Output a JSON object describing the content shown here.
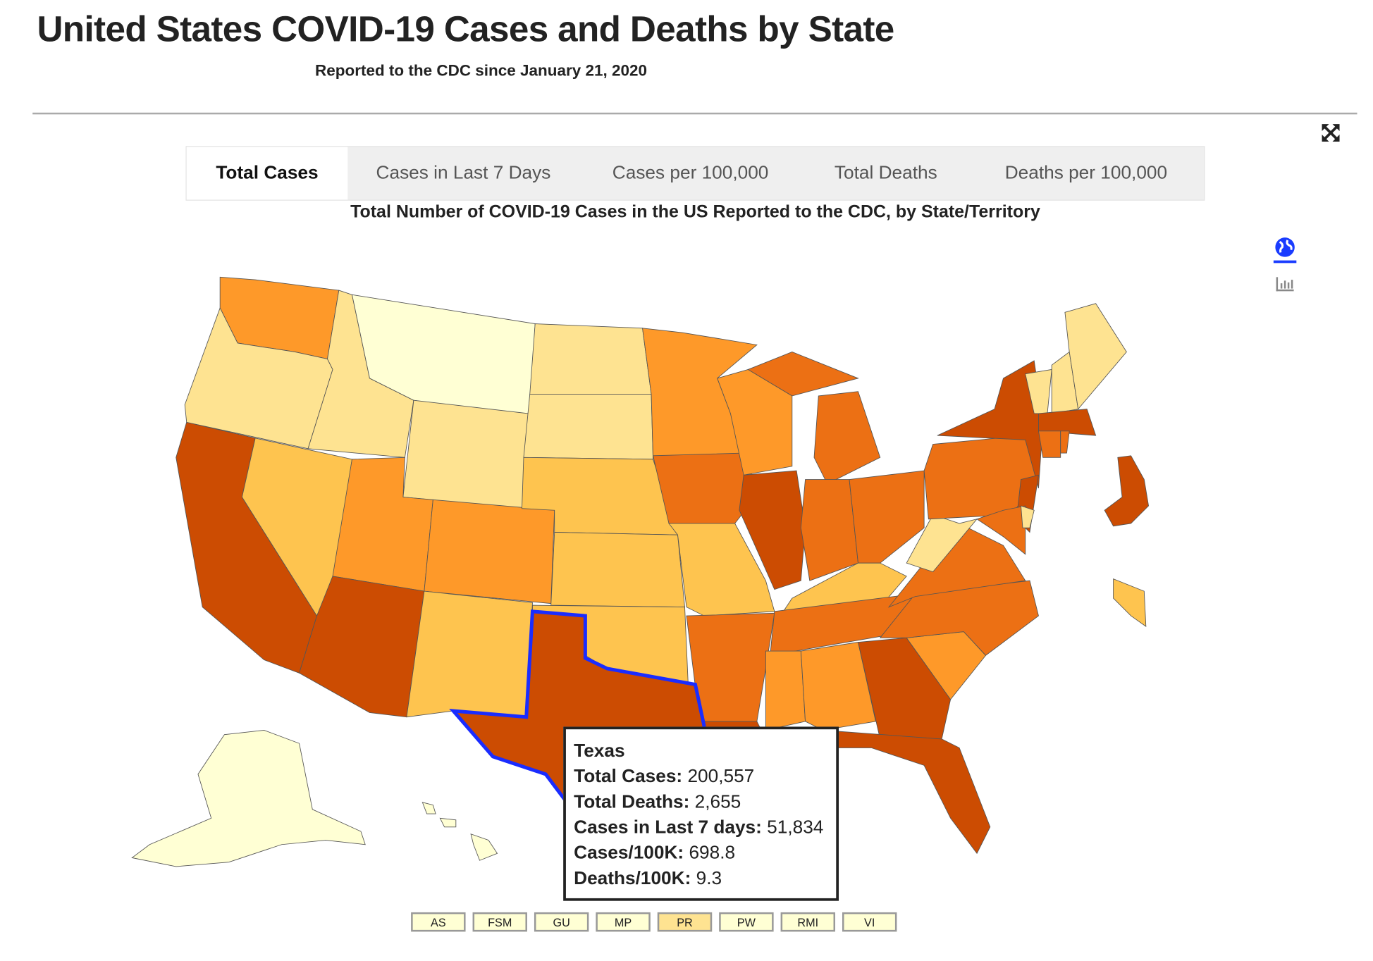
{
  "header": {
    "title": "United States COVID-19 Cases and Deaths by State",
    "subtitle": "Reported to the CDC since January 21, 2020"
  },
  "tabs": [
    {
      "label": "Total Cases",
      "active": true
    },
    {
      "label": "Cases in Last 7 Days",
      "active": false
    },
    {
      "label": "Cases per 100,000",
      "active": false
    },
    {
      "label": "Total Deaths",
      "active": false
    },
    {
      "label": "Deaths per 100,000",
      "active": false
    }
  ],
  "chart_title": "Total Number of COVID-19 Cases in the US Reported to the CDC, by State/Territory",
  "icons": {
    "expand": "expand-icon",
    "map_view": "globe-icon",
    "table_view": "bar-chart-icon"
  },
  "colors": {
    "bin1": "#ffffd4",
    "bin2": "#fee391",
    "bin3": "#fec44f",
    "bin4": "#fe9929",
    "bin5": "#ec7014",
    "bin6": "#cc4c02",
    "highlight": "#1a2cff",
    "accent": "#1a3cff"
  },
  "tooltip": {
    "state": "Texas",
    "rows": [
      {
        "label": "Total Cases:",
        "value": "200,557"
      },
      {
        "label": "Total Deaths:",
        "value": "2,655"
      },
      {
        "label": "Cases in Last 7 days:",
        "value": "51,834"
      },
      {
        "label": "Cases/100K:",
        "value": "698.8"
      },
      {
        "label": "Deaths/100K:",
        "value": "9.3"
      }
    ]
  },
  "territories": [
    {
      "label": "AS",
      "bin": "bin1"
    },
    {
      "label": "FSM",
      "bin": "bin1"
    },
    {
      "label": "GU",
      "bin": "bin1"
    },
    {
      "label": "MP",
      "bin": "bin1"
    },
    {
      "label": "PR",
      "bin": "bin2"
    },
    {
      "label": "PW",
      "bin": "bin1"
    },
    {
      "label": "RMI",
      "bin": "bin1"
    },
    {
      "label": "VI",
      "bin": "bin1"
    }
  ],
  "states": [
    {
      "name": "WA",
      "bin": "bin4"
    },
    {
      "name": "OR",
      "bin": "bin2"
    },
    {
      "name": "CA",
      "bin": "bin6"
    },
    {
      "name": "NV",
      "bin": "bin3"
    },
    {
      "name": "ID",
      "bin": "bin2"
    },
    {
      "name": "MT",
      "bin": "bin1"
    },
    {
      "name": "WY",
      "bin": "bin2"
    },
    {
      "name": "UT",
      "bin": "bin4"
    },
    {
      "name": "CO",
      "bin": "bin4"
    },
    {
      "name": "AZ",
      "bin": "bin6"
    },
    {
      "name": "NM",
      "bin": "bin3"
    },
    {
      "name": "ND",
      "bin": "bin2"
    },
    {
      "name": "SD",
      "bin": "bin2"
    },
    {
      "name": "NE",
      "bin": "bin3"
    },
    {
      "name": "KS",
      "bin": "bin3"
    },
    {
      "name": "OK",
      "bin": "bin3"
    },
    {
      "name": "TX",
      "bin": "bin6"
    },
    {
      "name": "MN",
      "bin": "bin4"
    },
    {
      "name": "IA",
      "bin": "bin5"
    },
    {
      "name": "MO",
      "bin": "bin3"
    },
    {
      "name": "AR",
      "bin": "bin5"
    },
    {
      "name": "LA",
      "bin": "bin6"
    },
    {
      "name": "WI",
      "bin": "bin4"
    },
    {
      "name": "IL",
      "bin": "bin6"
    },
    {
      "name": "MI",
      "bin": "bin5"
    },
    {
      "name": "IN",
      "bin": "bin5"
    },
    {
      "name": "OH",
      "bin": "bin5"
    },
    {
      "name": "KY",
      "bin": "bin3"
    },
    {
      "name": "TN",
      "bin": "bin5"
    },
    {
      "name": "MS",
      "bin": "bin4"
    },
    {
      "name": "AL",
      "bin": "bin4"
    },
    {
      "name": "GA",
      "bin": "bin6"
    },
    {
      "name": "FL",
      "bin": "bin6"
    },
    {
      "name": "SC",
      "bin": "bin4"
    },
    {
      "name": "NC",
      "bin": "bin5"
    },
    {
      "name": "VA",
      "bin": "bin5"
    },
    {
      "name": "WV",
      "bin": "bin2"
    },
    {
      "name": "PA",
      "bin": "bin5"
    },
    {
      "name": "NY",
      "bin": "bin6"
    },
    {
      "name": "NJ",
      "bin": "bin6"
    },
    {
      "name": "MD",
      "bin": "bin5"
    },
    {
      "name": "DE",
      "bin": "bin2"
    },
    {
      "name": "VT",
      "bin": "bin2"
    },
    {
      "name": "NH",
      "bin": "bin2"
    },
    {
      "name": "ME",
      "bin": "bin2"
    },
    {
      "name": "MA",
      "bin": "bin6"
    },
    {
      "name": "CT",
      "bin": "bin5"
    },
    {
      "name": "RI",
      "bin": "bin5"
    },
    {
      "name": "AK",
      "bin": "bin1"
    },
    {
      "name": "HI",
      "bin": "bin1"
    },
    {
      "name": "DC-inset",
      "bin": "bin6"
    },
    {
      "name": "small-inset",
      "bin": "bin3"
    }
  ]
}
